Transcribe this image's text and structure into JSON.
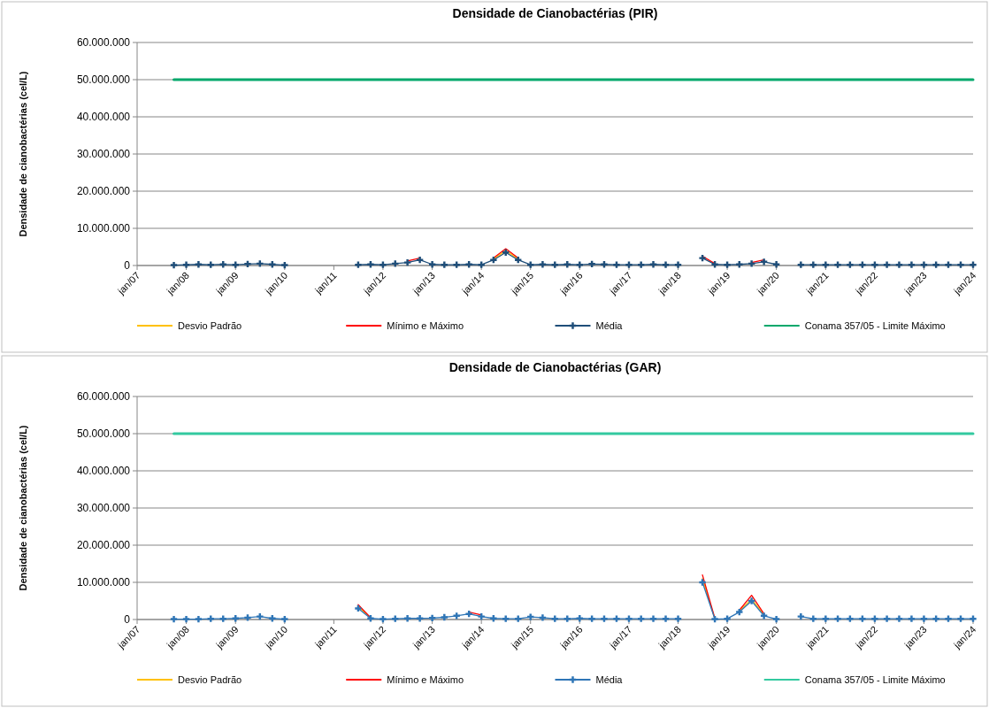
{
  "chart_data": [
    {
      "type": "line",
      "title": "Densidade de Cianobactérias (PIR)",
      "ylabel": "Densidade de cianobactérias  (cel/L)",
      "x": [
        "2007-10",
        "2008-01",
        "2008-04",
        "2008-07",
        "2008-10",
        "2009-01",
        "2009-04",
        "2009-07",
        "2009-10",
        "2010-01",
        "2010-04",
        "2010-07",
        "2010-10",
        "2011-01",
        "2011-04",
        "2011-07",
        "2011-10",
        "2012-01",
        "2012-04",
        "2012-07",
        "2012-10",
        "2013-01",
        "2013-04",
        "2013-07",
        "2013-10",
        "2014-01",
        "2014-04",
        "2014-07",
        "2014-10",
        "2015-01",
        "2015-04",
        "2015-07",
        "2015-10",
        "2016-01",
        "2016-04",
        "2016-07",
        "2016-10",
        "2017-01",
        "2017-04",
        "2017-07",
        "2017-10",
        "2018-01",
        "2018-04",
        "2018-07",
        "2018-10",
        "2019-01",
        "2019-04",
        "2019-07",
        "2019-10",
        "2020-01",
        "2020-04",
        "2020-07",
        "2020-10",
        "2021-01",
        "2021-04",
        "2021-07",
        "2021-10",
        "2022-01",
        "2022-04",
        "2022-07",
        "2022-10",
        "2023-01",
        "2023-04",
        "2023-07",
        "2023-10",
        "2024-01"
      ],
      "series": [
        {
          "name": "Desvio Padrão",
          "color": "#ffc000",
          "values": [
            null,
            null,
            null,
            null,
            null,
            null,
            null,
            null,
            null,
            null,
            null,
            null,
            null,
            null,
            null,
            null,
            null,
            null,
            null,
            null,
            null,
            null,
            null,
            null,
            null,
            null,
            1800000,
            4000000,
            1800000,
            null,
            null,
            null,
            null,
            null,
            null,
            null,
            null,
            null,
            null,
            null,
            null,
            null,
            null,
            null,
            null,
            null,
            null,
            null,
            null,
            null,
            null,
            null,
            null,
            null,
            null,
            null,
            null,
            null,
            null,
            null,
            null,
            null,
            null,
            null,
            null,
            null
          ]
        },
        {
          "name": "Mínimo e Máximo",
          "color": "#ff0000",
          "values": [
            null,
            null,
            null,
            null,
            null,
            null,
            null,
            null,
            null,
            null,
            null,
            null,
            null,
            null,
            null,
            null,
            null,
            null,
            null,
            1200000,
            2000000,
            null,
            null,
            null,
            null,
            null,
            2000000,
            4500000,
            2000000,
            null,
            null,
            null,
            null,
            null,
            null,
            null,
            null,
            null,
            null,
            null,
            null,
            null,
            null,
            2500000,
            500000,
            null,
            null,
            800000,
            1500000,
            null,
            null,
            null,
            null,
            null,
            null,
            null,
            null,
            null,
            null,
            null,
            null,
            null,
            null,
            null,
            null,
            null
          ]
        },
        {
          "name": "Média",
          "color": "#1f4e79",
          "marker": "cross",
          "values": [
            100000,
            200000,
            300000,
            200000,
            300000,
            200000,
            400000,
            500000,
            300000,
            100000,
            null,
            null,
            null,
            null,
            null,
            200000,
            300000,
            200000,
            500000,
            800000,
            1500000,
            300000,
            200000,
            200000,
            300000,
            200000,
            1500000,
            3500000,
            1500000,
            200000,
            300000,
            200000,
            300000,
            200000,
            400000,
            300000,
            200000,
            200000,
            200000,
            300000,
            200000,
            200000,
            null,
            2000000,
            300000,
            200000,
            300000,
            500000,
            1000000,
            300000,
            null,
            200000,
            200000,
            200000,
            200000,
            200000,
            200000,
            200000,
            200000,
            200000,
            200000,
            200000,
            200000,
            200000,
            200000,
            200000
          ]
        },
        {
          "name": "Conama 357/05 - Limite Máximo",
          "color": "#00a86b",
          "x": [
            "2007-10",
            "2024-01"
          ],
          "values": [
            50000000,
            50000000
          ]
        }
      ],
      "xlim": [
        "2007-01",
        "2024-01"
      ],
      "xticks": [
        {
          "value": "2007-01",
          "label": "jan/07"
        },
        {
          "value": "2008-01",
          "label": "jan/08"
        },
        {
          "value": "2009-01",
          "label": "jan/09"
        },
        {
          "value": "2010-01",
          "label": "jan/10"
        },
        {
          "value": "2011-01",
          "label": "jan/11"
        },
        {
          "value": "2012-01",
          "label": "jan/12"
        },
        {
          "value": "2013-01",
          "label": "jan/13"
        },
        {
          "value": "2014-01",
          "label": "jan/14"
        },
        {
          "value": "2015-01",
          "label": "jan/15"
        },
        {
          "value": "2016-01",
          "label": "jan/16"
        },
        {
          "value": "2017-01",
          "label": "jan/17"
        },
        {
          "value": "2018-01",
          "label": "jan/18"
        },
        {
          "value": "2019-01",
          "label": "jan/19"
        },
        {
          "value": "2020-01",
          "label": "jan/20"
        },
        {
          "value": "2021-01",
          "label": "jan/21"
        },
        {
          "value": "2022-01",
          "label": "jan/22"
        },
        {
          "value": "2023-01",
          "label": "jan/23"
        },
        {
          "value": "2024-01",
          "label": "jan/24"
        }
      ],
      "ylim": [
        0,
        60000000
      ],
      "yticks": [
        {
          "value": 0,
          "label": "0"
        },
        {
          "value": 10000000,
          "label": "10.000.000"
        },
        {
          "value": 20000000,
          "label": "20.000.000"
        },
        {
          "value": 30000000,
          "label": "30.000.000"
        },
        {
          "value": 40000000,
          "label": "40.000.000"
        },
        {
          "value": 50000000,
          "label": "50.000.000"
        },
        {
          "value": 60000000,
          "label": "60.000.000"
        }
      ],
      "grid": "y",
      "legend": "bottom"
    },
    {
      "type": "line",
      "title": "Densidade de Cianobactérias (GAR)",
      "ylabel": "Densidade de cianobactérias  (cel/L)",
      "x": [
        "2007-10",
        "2008-01",
        "2008-04",
        "2008-07",
        "2008-10",
        "2009-01",
        "2009-04",
        "2009-07",
        "2009-10",
        "2010-01",
        "2010-04",
        "2010-07",
        "2010-10",
        "2011-01",
        "2011-04",
        "2011-07",
        "2011-10",
        "2012-01",
        "2012-04",
        "2012-07",
        "2012-10",
        "2013-01",
        "2013-04",
        "2013-07",
        "2013-10",
        "2014-01",
        "2014-04",
        "2014-07",
        "2014-10",
        "2015-01",
        "2015-04",
        "2015-07",
        "2015-10",
        "2016-01",
        "2016-04",
        "2016-07",
        "2016-10",
        "2017-01",
        "2017-04",
        "2017-07",
        "2017-10",
        "2018-01",
        "2018-04",
        "2018-07",
        "2018-10",
        "2019-01",
        "2019-04",
        "2019-07",
        "2019-10",
        "2020-01",
        "2020-04",
        "2020-07",
        "2020-10",
        "2021-01",
        "2021-04",
        "2021-07",
        "2021-10",
        "2022-01",
        "2022-04",
        "2022-07",
        "2022-10",
        "2023-01",
        "2023-04",
        "2023-07",
        "2023-10",
        "2024-01"
      ],
      "series": [
        {
          "name": "Desvio Padrão",
          "color": "#ffc000",
          "values": [
            null,
            null,
            null,
            null,
            null,
            null,
            null,
            null,
            null,
            null,
            null,
            null,
            null,
            null,
            null,
            3500000,
            400000,
            null,
            null,
            null,
            null,
            null,
            null,
            null,
            null,
            null,
            null,
            null,
            null,
            null,
            null,
            null,
            null,
            null,
            null,
            null,
            null,
            null,
            null,
            null,
            null,
            null,
            null,
            11000000,
            200000,
            null,
            2200000,
            5500000,
            1200000,
            null,
            null,
            null,
            null,
            null,
            null,
            null,
            null,
            null,
            null,
            null,
            null,
            null,
            null,
            null,
            null,
            null
          ]
        },
        {
          "name": "Mínimo e Máximo",
          "color": "#ff0000",
          "values": [
            null,
            null,
            null,
            null,
            null,
            null,
            null,
            null,
            null,
            null,
            null,
            null,
            null,
            null,
            null,
            4000000,
            500000,
            null,
            null,
            null,
            null,
            null,
            null,
            null,
            2000000,
            1200000,
            null,
            null,
            null,
            null,
            null,
            null,
            null,
            null,
            null,
            null,
            null,
            null,
            null,
            null,
            null,
            null,
            null,
            12000000,
            300000,
            null,
            2500000,
            6500000,
            1500000,
            null,
            null,
            null,
            null,
            null,
            null,
            null,
            null,
            null,
            null,
            null,
            null,
            null,
            null,
            null,
            null,
            null
          ]
        },
        {
          "name": "Média",
          "color": "#2e75b6",
          "marker": "cross",
          "values": [
            100000,
            100000,
            100000,
            200000,
            200000,
            300000,
            500000,
            800000,
            300000,
            100000,
            null,
            null,
            null,
            null,
            null,
            3000000,
            300000,
            100000,
            200000,
            300000,
            300000,
            400000,
            600000,
            1000000,
            1500000,
            800000,
            300000,
            200000,
            200000,
            700000,
            500000,
            200000,
            200000,
            300000,
            200000,
            200000,
            200000,
            200000,
            200000,
            200000,
            200000,
            200000,
            null,
            10000000,
            100000,
            200000,
            2000000,
            5000000,
            1000000,
            100000,
            null,
            800000,
            200000,
            200000,
            200000,
            200000,
            200000,
            200000,
            200000,
            200000,
            200000,
            200000,
            200000,
            200000,
            200000,
            200000
          ]
        },
        {
          "name": "Conama 357/05 - Limite Máximo",
          "color": "#33c9a0",
          "x": [
            "2007-10",
            "2024-01"
          ],
          "values": [
            50000000,
            50000000
          ]
        }
      ],
      "xlim": [
        "2007-01",
        "2024-01"
      ],
      "xticks": [
        {
          "value": "2007-01",
          "label": "jan/07"
        },
        {
          "value": "2008-01",
          "label": "jan/08"
        },
        {
          "value": "2009-01",
          "label": "jan/09"
        },
        {
          "value": "2010-01",
          "label": "jan/10"
        },
        {
          "value": "2011-01",
          "label": "jan/11"
        },
        {
          "value": "2012-01",
          "label": "jan/12"
        },
        {
          "value": "2013-01",
          "label": "jan/13"
        },
        {
          "value": "2014-01",
          "label": "jan/14"
        },
        {
          "value": "2015-01",
          "label": "jan/15"
        },
        {
          "value": "2016-01",
          "label": "jan/16"
        },
        {
          "value": "2017-01",
          "label": "jan/17"
        },
        {
          "value": "2018-01",
          "label": "jan/18"
        },
        {
          "value": "2019-01",
          "label": "jan/19"
        },
        {
          "value": "2020-01",
          "label": "jan/20"
        },
        {
          "value": "2021-01",
          "label": "jan/21"
        },
        {
          "value": "2022-01",
          "label": "jan/22"
        },
        {
          "value": "2023-01",
          "label": "jan/23"
        },
        {
          "value": "2024-01",
          "label": "jan/24"
        }
      ],
      "ylim": [
        0,
        60000000
      ],
      "yticks": [
        {
          "value": 0,
          "label": "0"
        },
        {
          "value": 10000000,
          "label": "10.000.000"
        },
        {
          "value": 20000000,
          "label": "20.000.000"
        },
        {
          "value": 30000000,
          "label": "30.000.000"
        },
        {
          "value": 40000000,
          "label": "40.000.000"
        },
        {
          "value": 50000000,
          "label": "50.000.000"
        },
        {
          "value": 60000000,
          "label": "60.000.000"
        }
      ],
      "grid": "y",
      "legend": "bottom"
    }
  ]
}
